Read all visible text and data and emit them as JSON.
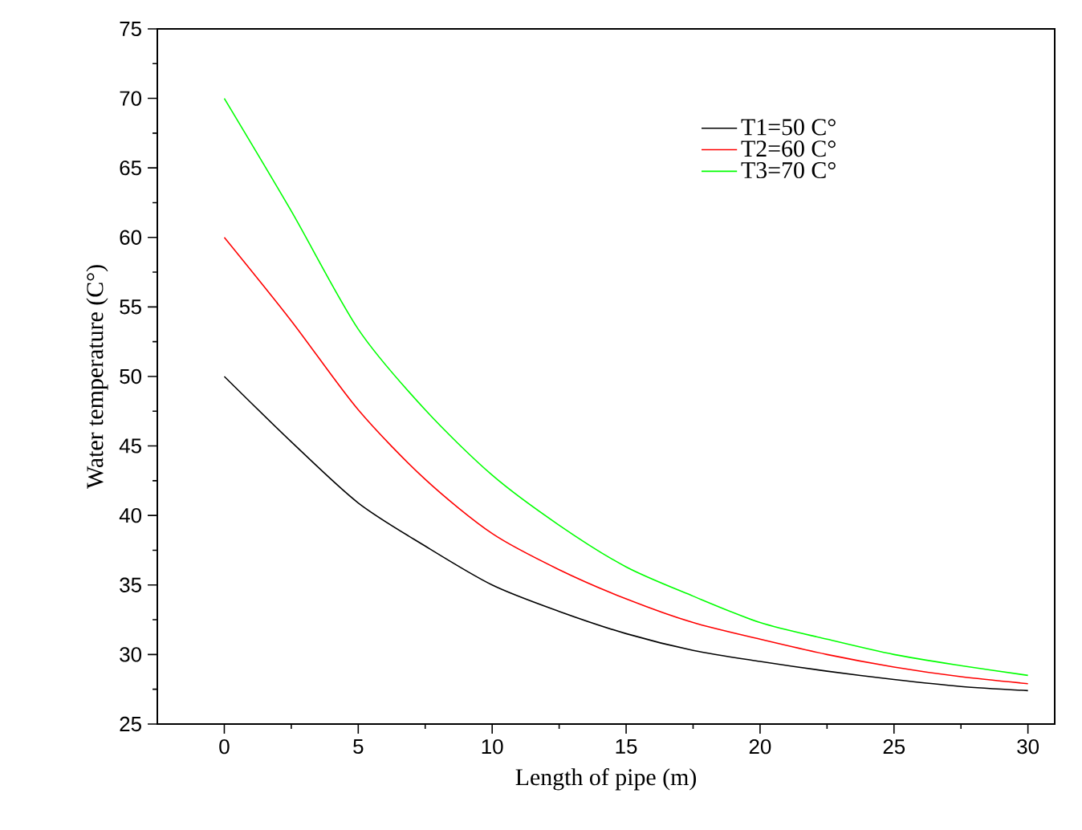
{
  "chart_data": {
    "type": "line",
    "xlabel": "Length of pipe (m)",
    "ylabel": "Water temperature (C°)",
    "x": [
      0,
      2.5,
      5,
      7.5,
      10,
      12.5,
      15,
      17.5,
      20,
      22.5,
      25,
      27.5,
      30
    ],
    "series": [
      {
        "name": "T1=50 C°",
        "color": "#000000",
        "values": [
          50,
          45.3,
          40.9,
          37.8,
          35.0,
          33.1,
          31.5,
          30.3,
          29.5,
          28.8,
          28.2,
          27.7,
          27.4
        ]
      },
      {
        "name": "T2=60 C°",
        "color": "#ff0000",
        "values": [
          60,
          54.0,
          47.6,
          42.6,
          38.7,
          36.1,
          34.0,
          32.3,
          31.1,
          30.0,
          29.1,
          28.4,
          27.9
        ]
      },
      {
        "name": "T3=70 C°",
        "color": "#00ff00",
        "values": [
          70,
          61.9,
          53.4,
          47.6,
          42.9,
          39.3,
          36.3,
          34.2,
          32.3,
          31.1,
          30.0,
          29.2,
          28.5
        ]
      }
    ],
    "xlim": [
      -2.5,
      31
    ],
    "ylim": [
      25,
      75
    ],
    "xticks": [
      0,
      5,
      10,
      15,
      20,
      25,
      30
    ],
    "yticks": [
      25,
      30,
      35,
      40,
      45,
      50,
      55,
      60,
      65,
      70,
      75
    ],
    "grid": false,
    "legend": "top right",
    "marker": "none",
    "line_style": "solid"
  }
}
